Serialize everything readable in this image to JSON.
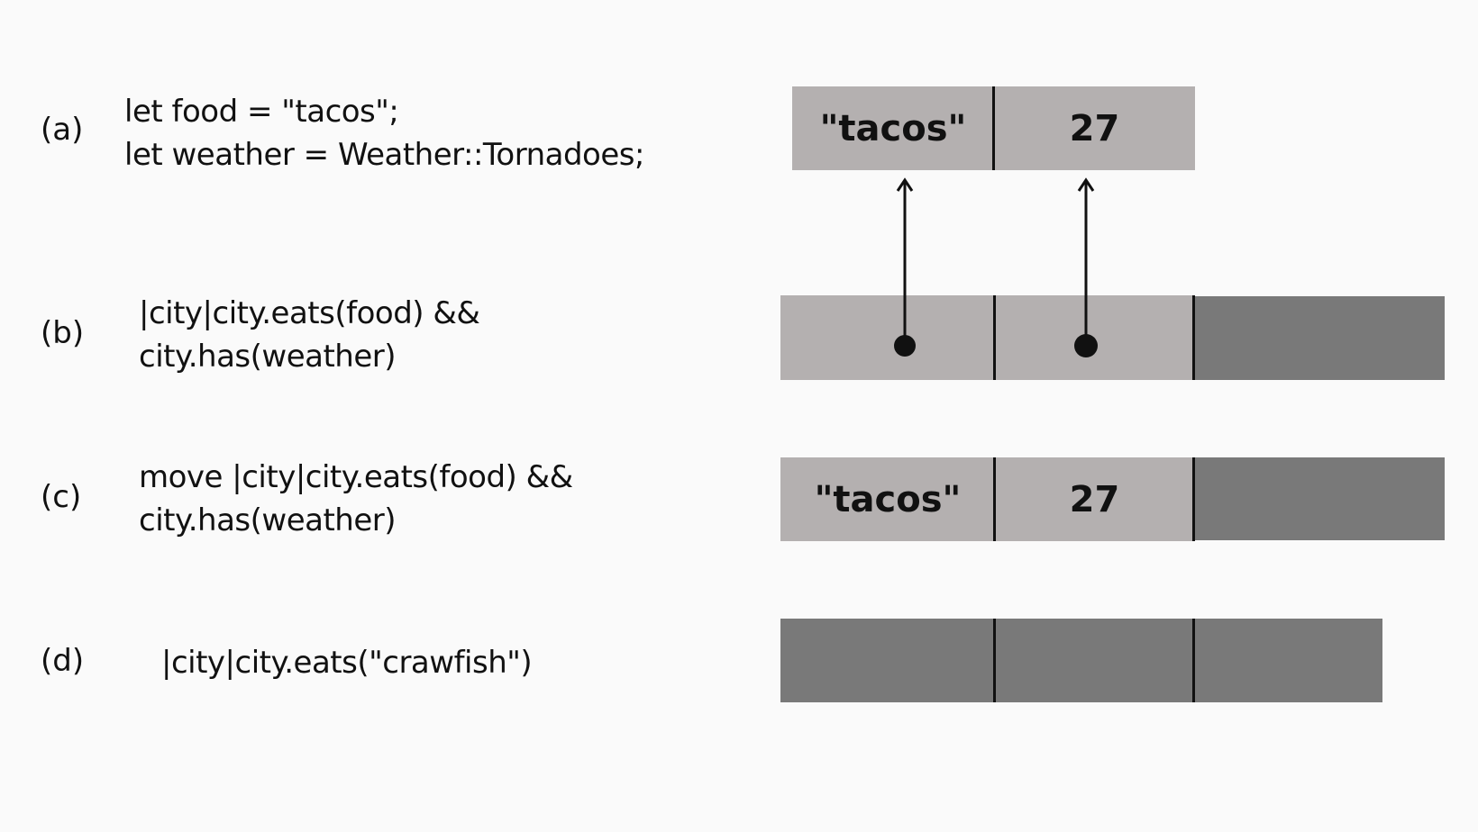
{
  "rows": {
    "a": {
      "label": "(a)",
      "code": [
        "let food = \"tacos\";",
        "let weather = Weather::Tornadoes;"
      ],
      "cells": [
        "\"tacos\"",
        "27"
      ]
    },
    "b": {
      "label": "(b)",
      "code": [
        "|city|city.eats(food) &&",
        "city.has(weather)"
      ],
      "cells": [
        "",
        "",
        ""
      ]
    },
    "c": {
      "label": "(c)",
      "code": [
        "move |city|city.eats(food) &&",
        "city.has(weather)"
      ],
      "cells": [
        "\"tacos\"",
        "27",
        ""
      ]
    },
    "d": {
      "label": "(d)",
      "code": [
        "|city|city.eats(\"crawfish\")"
      ],
      "cells": [
        "",
        "",
        ""
      ]
    }
  },
  "colors": {
    "background": "#fafafa",
    "data_cell": "#b4b0b0",
    "empty_cell": "#797979",
    "ink": "#111111"
  }
}
